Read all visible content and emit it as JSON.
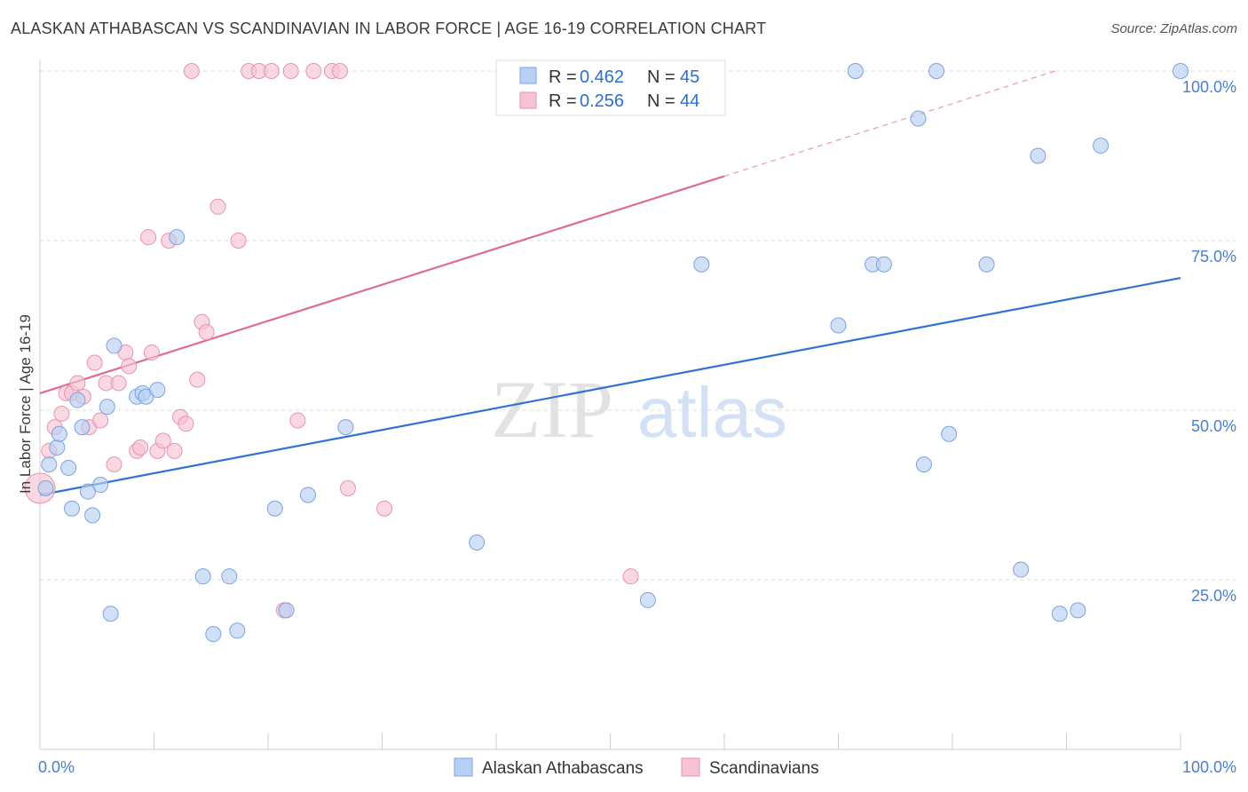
{
  "header": {
    "title": "ALASKAN ATHABASCAN VS SCANDINAVIAN IN LABOR FORCE | AGE 16-19 CORRELATION CHART",
    "source": "Source: ZipAtlas.com"
  },
  "watermark": {
    "zip": "ZIP",
    "atlas": "atlas"
  },
  "legend": {
    "blue": {
      "r_label": "R = ",
      "r_value": "0.462",
      "n_label": "N = ",
      "n_value": "45"
    },
    "pink": {
      "r_label": "R = ",
      "r_value": "0.256",
      "n_label": "N = ",
      "n_value": "44"
    }
  },
  "colors": {
    "blue_fill": "#b8d0f3",
    "blue_stroke": "#7aa3e0",
    "blue_line": "#2f72d2",
    "pink_fill": "#f6c3d3",
    "pink_stroke": "#e992b0",
    "pink_line": "#e06a92",
    "grid": "#dddddd",
    "tick_label": "#4a7fd0"
  },
  "chart_data": {
    "type": "scatter",
    "title": "ALASKAN ATHABASCAN VS SCANDINAVIAN IN LABOR FORCE | AGE 16-19 CORRELATION CHART",
    "ylabel": "In Labor Force | Age 16-19",
    "xlabel": "",
    "xlim": [
      0,
      100
    ],
    "ylim": [
      0,
      100
    ],
    "x_tick_labels": [
      "0.0%",
      "100.0%"
    ],
    "y_ticks": [
      25,
      50,
      75,
      100
    ],
    "y_tick_labels": [
      "25.0%",
      "50.0%",
      "75.0%",
      "100.0%"
    ],
    "grid": "horizontal dashed",
    "legend_position": "top-center",
    "series": [
      {
        "name": "Alaskan Athabascans",
        "color": "#b8d0f3",
        "trend": {
          "x": [
            0,
            100
          ],
          "y": [
            37.5,
            69.5
          ]
        },
        "points": [
          {
            "x": 0.5,
            "y": 38.5
          },
          {
            "x": 0.8,
            "y": 42
          },
          {
            "x": 1.5,
            "y": 44.5
          },
          {
            "x": 1.7,
            "y": 46.5
          },
          {
            "x": 2.5,
            "y": 41.5
          },
          {
            "x": 2.8,
            "y": 35.5
          },
          {
            "x": 3.3,
            "y": 51.5
          },
          {
            "x": 3.7,
            "y": 47.5
          },
          {
            "x": 4.2,
            "y": 38
          },
          {
            "x": 4.6,
            "y": 34.5
          },
          {
            "x": 5.3,
            "y": 39
          },
          {
            "x": 5.9,
            "y": 50.5
          },
          {
            "x": 6.2,
            "y": 20
          },
          {
            "x": 6.5,
            "y": 59.5
          },
          {
            "x": 8.5,
            "y": 52
          },
          {
            "x": 9.0,
            "y": 52.5
          },
          {
            "x": 9.3,
            "y": 52
          },
          {
            "x": 10.3,
            "y": 53
          },
          {
            "x": 12.0,
            "y": 75.5
          },
          {
            "x": 14.3,
            "y": 25.5
          },
          {
            "x": 15.2,
            "y": 17
          },
          {
            "x": 16.6,
            "y": 25.5
          },
          {
            "x": 17.3,
            "y": 17.5
          },
          {
            "x": 20.6,
            "y": 35.5
          },
          {
            "x": 21.6,
            "y": 20.5
          },
          {
            "x": 23.5,
            "y": 37.5
          },
          {
            "x": 26.8,
            "y": 47.5
          },
          {
            "x": 38.3,
            "y": 30.5
          },
          {
            "x": 53.3,
            "y": 22
          },
          {
            "x": 58.0,
            "y": 71.5
          },
          {
            "x": 70.0,
            "y": 62.5
          },
          {
            "x": 71.5,
            "y": 100
          },
          {
            "x": 73.0,
            "y": 71.5
          },
          {
            "x": 74.0,
            "y": 71.5
          },
          {
            "x": 77.0,
            "y": 93
          },
          {
            "x": 77.5,
            "y": 42
          },
          {
            "x": 78.6,
            "y": 100
          },
          {
            "x": 79.7,
            "y": 46.5
          },
          {
            "x": 83.0,
            "y": 71.5
          },
          {
            "x": 86.0,
            "y": 26.5
          },
          {
            "x": 87.5,
            "y": 87.5
          },
          {
            "x": 89.4,
            "y": 20
          },
          {
            "x": 91.0,
            "y": 20.5
          },
          {
            "x": 93.0,
            "y": 89
          },
          {
            "x": 100,
            "y": 100
          }
        ]
      },
      {
        "name": "Scandinavians",
        "color": "#f6c3d3",
        "trend": {
          "x": [
            0,
            60
          ],
          "y": [
            52.5,
            84.5
          ],
          "dashed_extension": {
            "x": [
              60,
              89
            ],
            "y": [
              84.5,
              100
            ]
          }
        },
        "points": [
          {
            "x": 0,
            "y": 38.5
          },
          {
            "x": 0.8,
            "y": 44
          },
          {
            "x": 1.3,
            "y": 47.5
          },
          {
            "x": 1.9,
            "y": 49.5
          },
          {
            "x": 2.3,
            "y": 52.5
          },
          {
            "x": 2.8,
            "y": 52.5
          },
          {
            "x": 3.3,
            "y": 54
          },
          {
            "x": 3.8,
            "y": 52
          },
          {
            "x": 4.3,
            "y": 47.5
          },
          {
            "x": 4.8,
            "y": 57
          },
          {
            "x": 5.3,
            "y": 48.5
          },
          {
            "x": 5.8,
            "y": 54
          },
          {
            "x": 6.5,
            "y": 42
          },
          {
            "x": 6.9,
            "y": 54
          },
          {
            "x": 7.5,
            "y": 58.5
          },
          {
            "x": 7.8,
            "y": 56.5
          },
          {
            "x": 8.5,
            "y": 44
          },
          {
            "x": 8.8,
            "y": 44.5
          },
          {
            "x": 9.5,
            "y": 75.5
          },
          {
            "x": 9.8,
            "y": 58.5
          },
          {
            "x": 10.3,
            "y": 44
          },
          {
            "x": 10.8,
            "y": 45.5
          },
          {
            "x": 11.3,
            "y": 75
          },
          {
            "x": 11.8,
            "y": 44
          },
          {
            "x": 12.3,
            "y": 49
          },
          {
            "x": 12.8,
            "y": 48
          },
          {
            "x": 13.3,
            "y": 100
          },
          {
            "x": 13.8,
            "y": 54.5
          },
          {
            "x": 14.2,
            "y": 63
          },
          {
            "x": 14.6,
            "y": 61.5
          },
          {
            "x": 15.6,
            "y": 80
          },
          {
            "x": 17.4,
            "y": 75
          },
          {
            "x": 18.3,
            "y": 100
          },
          {
            "x": 19.2,
            "y": 100
          },
          {
            "x": 20.3,
            "y": 100
          },
          {
            "x": 21.4,
            "y": 20.5
          },
          {
            "x": 22.0,
            "y": 100
          },
          {
            "x": 22.6,
            "y": 48.5
          },
          {
            "x": 24.0,
            "y": 100
          },
          {
            "x": 25.6,
            "y": 100
          },
          {
            "x": 26.3,
            "y": 100
          },
          {
            "x": 27.0,
            "y": 38.5
          },
          {
            "x": 30.2,
            "y": 35.5
          },
          {
            "x": 51.8,
            "y": 25.5
          }
        ]
      }
    ]
  }
}
